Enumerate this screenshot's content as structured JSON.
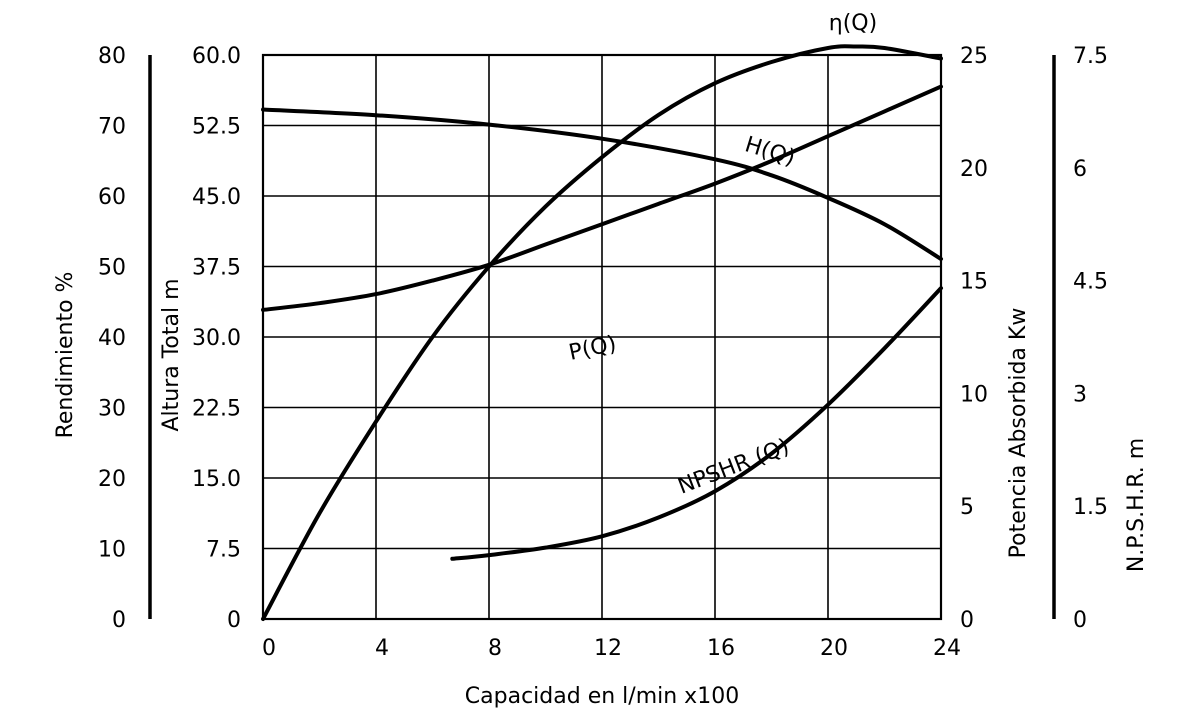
{
  "chart_data": {
    "type": "line",
    "xlabel": "Capacidad en l/min x100",
    "x_ticks": [
      "0",
      "4",
      "8",
      "12",
      "16",
      "20",
      "24"
    ],
    "xlim": [
      0,
      24
    ],
    "grid": true,
    "axes": {
      "rendimiento": {
        "label": "Rendimiento %",
        "ticks": [
          "0",
          "10",
          "20",
          "30",
          "40",
          "50",
          "60",
          "70",
          "80"
        ],
        "range": [
          0,
          80
        ]
      },
      "altura": {
        "label": "Altura Total m",
        "ticks": [
          "0",
          "7.5",
          "15.0",
          "22.5",
          "30.0",
          "37.5",
          "45.0",
          "52.5",
          "60.0"
        ],
        "range": [
          0,
          60
        ]
      },
      "potencia": {
        "label": "Potencia Absorbida Kw",
        "ticks": [
          "0",
          "5",
          "10",
          "15",
          "20",
          "25"
        ],
        "range": [
          0,
          25
        ]
      },
      "npshr": {
        "label": "N.P.S.H.R. m",
        "ticks": [
          "0",
          "1.5",
          "3",
          "4.5",
          "6",
          "7.5"
        ],
        "range": [
          0,
          7.5
        ]
      }
    },
    "series": [
      {
        "name": "η(Q)",
        "axis": "rendimiento",
        "x": [
          0,
          2,
          4,
          6,
          8,
          10,
          12,
          14,
          16,
          18,
          20,
          21,
          22,
          24
        ],
        "y": [
          0,
          15,
          28,
          40,
          50,
          58.5,
          65.5,
          71.5,
          76,
          79,
          81,
          81.2,
          81,
          79.5
        ]
      },
      {
        "name": "H(Q)",
        "axis": "altura",
        "x": [
          0,
          4,
          8,
          12,
          16,
          18,
          20,
          22,
          24
        ],
        "y": [
          54.2,
          53.6,
          52.6,
          51.1,
          48.9,
          47.2,
          44.8,
          42,
          38.3
        ]
      },
      {
        "name": "P(Q)",
        "axis": "potencia",
        "x": [
          0,
          2,
          4,
          6,
          8,
          10,
          12,
          14,
          16,
          18,
          20,
          22,
          24
        ],
        "y": [
          13.7,
          14,
          14.4,
          15,
          15.7,
          16.6,
          17.5,
          18.4,
          19.3,
          20.3,
          21.4,
          22.5,
          23.6
        ]
      },
      {
        "name": "NPSHR (Q)",
        "axis": "npshr",
        "x": [
          6.7,
          8,
          10,
          12,
          14,
          16,
          18,
          20,
          22,
          24
        ],
        "y": [
          0.8,
          0.85,
          0.95,
          1.1,
          1.35,
          1.7,
          2.2,
          2.85,
          3.6,
          4.4
        ]
      }
    ]
  }
}
